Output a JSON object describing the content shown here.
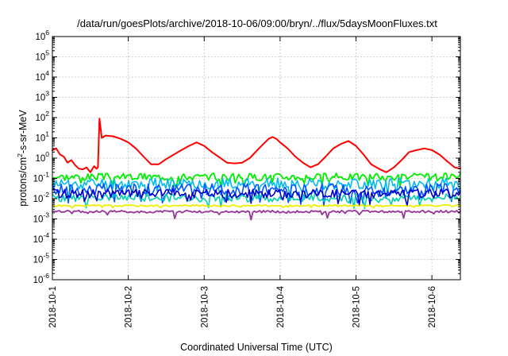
{
  "chart_data": {
    "type": "line",
    "title": "/data/run/goesPlots/archive/2018-10-06/09:00/bryn/../flux/5daysMoonFluxes.txt",
    "xlabel": "Coordinated Universal Time (UTC)",
    "ylabel": {
      "pre": "protons/cm",
      "sup": "2",
      "post": "-s-sr-MeV"
    },
    "yscale": "log",
    "ylim": [
      1e-06,
      1000000.0
    ],
    "xlim": [
      "2018-10-01",
      "2018-10-06 09:00"
    ],
    "xlim_days": [
      0,
      5.375
    ],
    "grid": true,
    "legend": "none",
    "x_ticks": [
      {
        "label": "2018-10-1",
        "day": 0
      },
      {
        "label": "2018-10-2",
        "day": 1
      },
      {
        "label": "2018-10-3",
        "day": 2
      },
      {
        "label": "2018-10-4",
        "day": 3
      },
      {
        "label": "2018-10-5",
        "day": 4
      },
      {
        "label": "2018-10-6",
        "day": 5
      }
    ],
    "y_ticks": [
      {
        "base": "10",
        "exp": "-6",
        "value": 1e-06
      },
      {
        "base": "10",
        "exp": "-5",
        "value": 1e-05
      },
      {
        "base": "10",
        "exp": "-4",
        "value": 0.0001
      },
      {
        "base": "10",
        "exp": "-3",
        "value": 0.001
      },
      {
        "base": "10",
        "exp": "-2",
        "value": 0.01
      },
      {
        "base": "10",
        "exp": "-1",
        "value": 0.1
      },
      {
        "base": "10",
        "exp": "0",
        "value": 1
      },
      {
        "base": "10",
        "exp": "1",
        "value": 10
      },
      {
        "base": "10",
        "exp": "2",
        "value": 100
      },
      {
        "base": "10",
        "exp": "3",
        "value": 1000
      },
      {
        "base": "10",
        "exp": "4",
        "value": 10000
      },
      {
        "base": "10",
        "exp": "5",
        "value": 100000
      },
      {
        "base": "10",
        "exp": "6",
        "value": 1000000
      }
    ],
    "series": [
      {
        "color": "#ff0000",
        "width": 2.0,
        "x": [
          0,
          0.05,
          0.1,
          0.15,
          0.2,
          0.25,
          0.3,
          0.35,
          0.4,
          0.45,
          0.5,
          0.55,
          0.58,
          0.6,
          0.62,
          0.65,
          0.7,
          0.8,
          0.9,
          1.0,
          1.1,
          1.2,
          1.3,
          1.4,
          1.5,
          1.6,
          1.7,
          1.8,
          1.9,
          2.0,
          2.1,
          2.2,
          2.3,
          2.4,
          2.5,
          2.6,
          2.7,
          2.8,
          2.85,
          2.9,
          2.95,
          3.0,
          3.1,
          3.2,
          3.3,
          3.4,
          3.5,
          3.6,
          3.7,
          3.8,
          3.9,
          4.0,
          4.1,
          4.2,
          4.3,
          4.4,
          4.5,
          4.6,
          4.7,
          4.8,
          4.9,
          5.0,
          5.1,
          5.2,
          5.3,
          5.375
        ],
        "y": [
          2.5,
          3.0,
          1.5,
          1.2,
          0.6,
          0.8,
          0.45,
          0.3,
          0.28,
          0.35,
          0.2,
          0.4,
          0.3,
          0.35,
          90,
          10,
          13,
          12,
          9,
          6,
          3,
          1.2,
          0.5,
          0.5,
          0.9,
          1.5,
          2.5,
          4,
          6,
          4,
          2,
          1.1,
          0.6,
          0.55,
          0.6,
          1.0,
          2.5,
          6,
          9,
          11,
          9,
          6,
          3,
          1.2,
          0.6,
          0.35,
          0.5,
          1.2,
          3,
          5,
          7,
          4,
          1.5,
          0.5,
          0.3,
          0.2,
          0.35,
          0.8,
          2,
          2.5,
          3,
          2.5,
          1.5,
          0.7,
          0.35,
          0.3
        ]
      },
      {
        "color": "#00ee00",
        "width": 1.8,
        "base": 0.12,
        "amp": 0.18,
        "seed": 3,
        "dipday": false
      },
      {
        "color": "#00bbee",
        "width": 1.6,
        "base": 0.055,
        "amp": 0.28,
        "seed": 11,
        "dipday": false
      },
      {
        "color": "#0055ff",
        "width": 1.6,
        "base": 0.028,
        "amp": 0.3,
        "seed": 17,
        "dipday": false
      },
      {
        "color": "#00d0b0",
        "width": 1.6,
        "base": 0.011,
        "amp": 0.2,
        "seed": 23,
        "dipday": false
      },
      {
        "color": "#0000cc",
        "width": 1.6,
        "base": 0.018,
        "amp": 0.22,
        "seed": 29,
        "dipday": false
      },
      {
        "color": "#eeee00",
        "width": 1.8,
        "base": 0.0045,
        "amp": 0.04,
        "seed": 31,
        "dipday": false
      },
      {
        "color": "#993399",
        "width": 1.8,
        "base": 0.0023,
        "amp": 0.06,
        "seed": 37,
        "dipday": true
      }
    ]
  }
}
